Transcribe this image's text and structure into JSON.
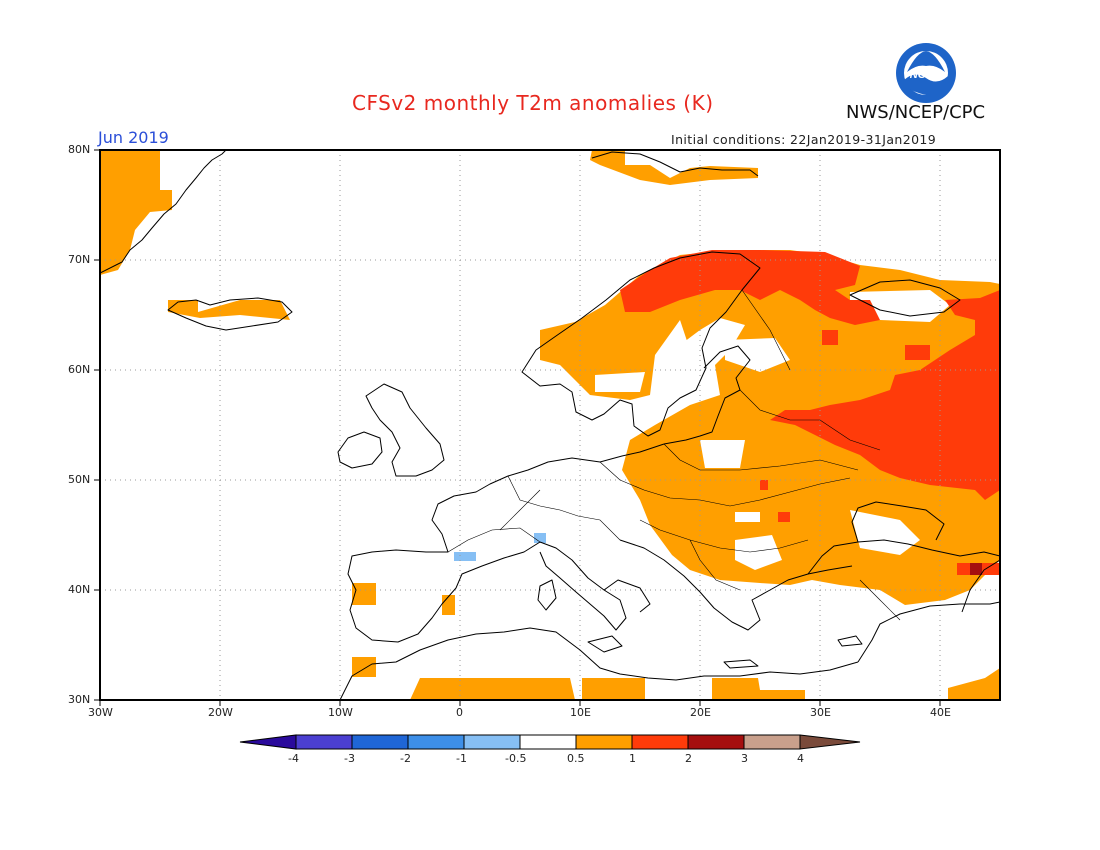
{
  "title": "CFSv2 monthly T2m anomalies (K)",
  "agency": "NWS/NCEP/CPC",
  "logo_text": "NOAA",
  "month_label": "Jun 2019",
  "initial_conditions": "Initial conditions: 22Jan2019-31Jan2019",
  "axes": {
    "lat_labels": [
      "80N",
      "70N",
      "60N",
      "50N",
      "40N",
      "30N"
    ],
    "lon_labels": [
      "30W",
      "20W",
      "10W",
      "0",
      "10E",
      "20E",
      "30E",
      "40E"
    ],
    "lat_range": [
      30,
      80
    ],
    "lon_range": [
      -30,
      45
    ],
    "grid": "dotted"
  },
  "colorbar": {
    "labels": [
      "-4",
      "-3",
      "-2",
      "-1",
      "-0.5",
      "0.5",
      "1",
      "2",
      "3",
      "4"
    ],
    "colors": [
      "#2a0a9c",
      "#4b3fd1",
      "#1f66d6",
      "#3d8fe8",
      "#86bff4",
      "#ffffff",
      "#ff9f00",
      "#ff3b0a",
      "#a50f0f",
      "#c9a08c",
      "#7a4a3a"
    ]
  },
  "anomaly_colors": {
    "weak_warm": "#ff9f00",
    "moderate_warm": "#ff3b0a",
    "strong_warm": "#a50f0f",
    "weak_cold": "#86bff4"
  }
}
